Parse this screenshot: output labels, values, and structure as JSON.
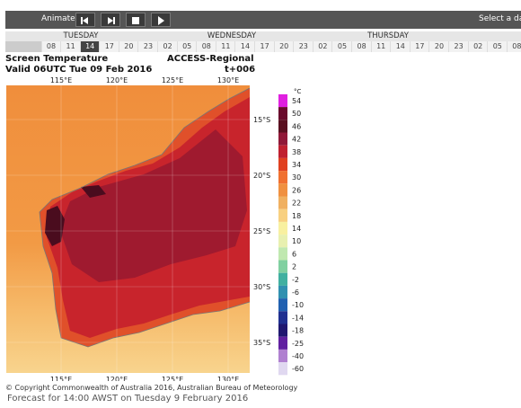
{
  "toolbar": {
    "animate": "Animate",
    "select_day": "Select a day"
  },
  "days": [
    "TUESDAY",
    "WEDNESDAY",
    "THURSDAY"
  ],
  "hours": [
    "08",
    "11",
    "14",
    "17",
    "20",
    "23",
    "02",
    "05",
    "08",
    "11",
    "14",
    "17",
    "20",
    "23",
    "02",
    "05",
    "08",
    "11",
    "14",
    "17",
    "20",
    "23",
    "02",
    "05",
    "08"
  ],
  "selected_hour": 2,
  "header": {
    "title": "Screen Temperature",
    "model": "ACCESS-Regional",
    "valid": "Valid 06UTC Tue 09 Feb 2016",
    "step": "t+006"
  },
  "map": {
    "lon_labels": [
      "115°E",
      "120°E",
      "125°E",
      "130°E"
    ],
    "lat_labels": [
      "15°S",
      "20°S",
      "25°S",
      "30°S",
      "35°S"
    ]
  },
  "legend": {
    "unit": "°C",
    "labels": [
      "54",
      "50",
      "46",
      "42",
      "38",
      "34",
      "30",
      "26",
      "22",
      "18",
      "14",
      "10",
      "6",
      "2",
      "-2",
      "-6",
      "-10",
      "-14",
      "-18",
      "-25",
      "-40",
      "-60"
    ]
  },
  "footer": {
    "copyright": "© Copyright Commonwealth of Australia 2016, Australian Bureau of Meteorology",
    "forecast": "Forecast for 14:00 AWST on Tuesday 9 February 2016"
  }
}
